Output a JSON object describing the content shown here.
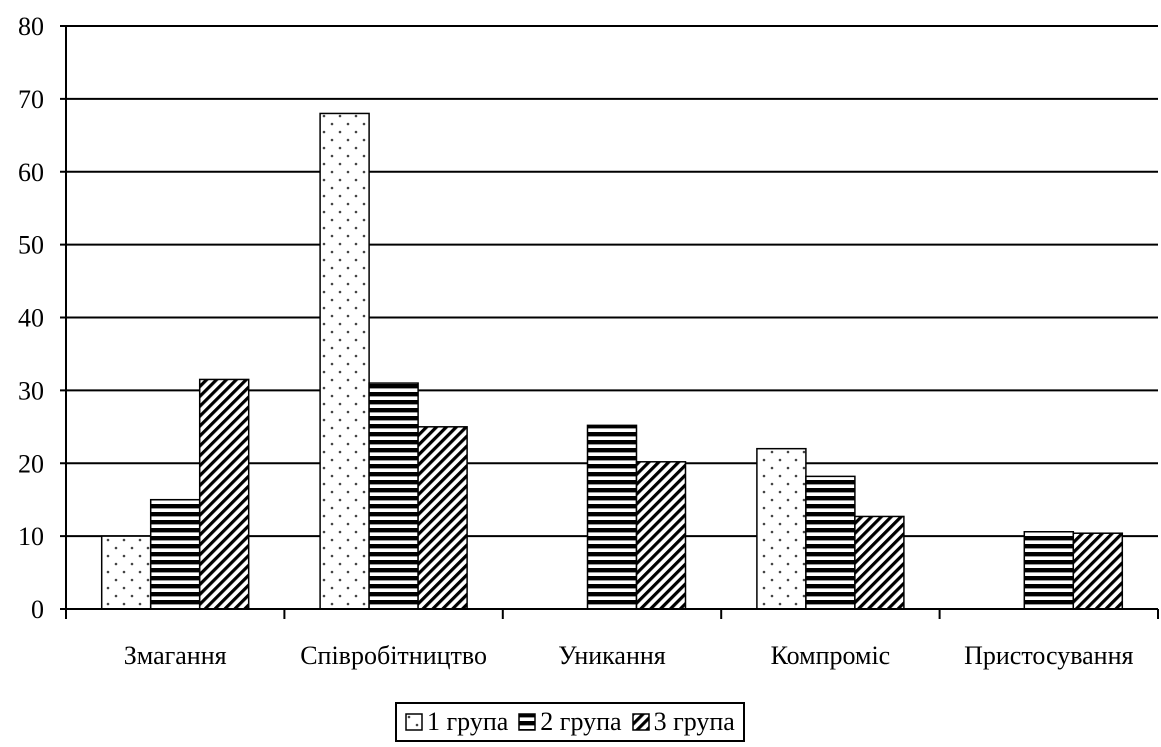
{
  "chart_data": {
    "type": "bar",
    "title": "",
    "xlabel": "",
    "ylabel": "",
    "ylim": [
      0,
      80
    ],
    "yticks": [
      0,
      10,
      20,
      30,
      40,
      50,
      60,
      70,
      80
    ],
    "grid": true,
    "legend_position": "bottom",
    "categories": [
      "Змагання",
      "Співробітництво",
      "Уникання",
      "Компроміс",
      "Пристосування"
    ],
    "series": [
      {
        "name": "1 група",
        "pattern": "dots",
        "color": "#ffffff",
        "values": [
          10,
          68,
          0,
          22,
          0
        ]
      },
      {
        "name": "2 група",
        "pattern": "horizontal-stripes",
        "color": "#000000",
        "values": [
          15,
          31,
          25.2,
          18.2,
          10.6
        ]
      },
      {
        "name": "3 група",
        "pattern": "diagonal-hatch",
        "color": "#000000",
        "values": [
          31.5,
          25,
          20.2,
          12.7,
          10.4
        ]
      }
    ]
  }
}
